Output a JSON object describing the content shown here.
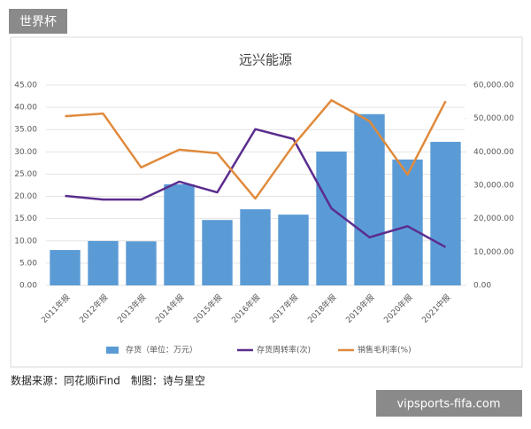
{
  "badge": "世界杯",
  "source_note": "数据来源：同花顺iFind　制图：诗与星空",
  "watermark": "vipsports-fifa.com",
  "chart_data": {
    "type": "bar-line",
    "title": "远兴能源",
    "categories": [
      "2011年报",
      "2012年报",
      "2013年报",
      "2014年报",
      "2015年报",
      "2016年报",
      "2017年报",
      "2018年报",
      "2019年报",
      "2020年报",
      "2021中报"
    ],
    "series": [
      {
        "name": "存货（单位：万元）",
        "type": "bar",
        "axis": "y2",
        "color": "#5b9bd5",
        "values": [
          10600,
          13300,
          13200,
          30300,
          19600,
          22800,
          21200,
          40100,
          51300,
          37700,
          43000
        ]
      },
      {
        "name": "存货周转率(次)",
        "type": "line",
        "color": "#5b2d8e",
        "values": [
          20.1,
          19.3,
          19.3,
          23.3,
          20.9,
          35.1,
          32.9,
          17.3,
          10.8,
          13.3,
          8.6
        ]
      },
      {
        "name": "销售毛利率(%)",
        "type": "line",
        "color": "#e08a3c",
        "values": [
          38.0,
          38.6,
          26.5,
          30.5,
          29.7,
          19.5,
          31.5,
          41.6,
          36.9,
          24.9,
          41.4
        ]
      }
    ],
    "ylim": [
      0,
      45
    ],
    "yticks": [
      {
        "value": 0,
        "label": "0.00"
      },
      {
        "value": 5,
        "label": "5.00"
      },
      {
        "value": 10,
        "label": "10.00"
      },
      {
        "value": 15,
        "label": "15.00"
      },
      {
        "value": 20,
        "label": "20.00"
      },
      {
        "value": 25,
        "label": "25.00"
      },
      {
        "value": 30,
        "label": "30.00"
      },
      {
        "value": 35,
        "label": "35.00"
      },
      {
        "value": 40,
        "label": "40.00"
      },
      {
        "value": 45,
        "label": "45.00"
      }
    ],
    "y2lim": [
      0,
      60000
    ],
    "y2ticks": [
      {
        "value": 0,
        "label": "0.00"
      },
      {
        "value": 10000,
        "label": "10,000.00"
      },
      {
        "value": 20000,
        "label": "20,000.00"
      },
      {
        "value": 30000,
        "label": "30,000.00"
      },
      {
        "value": 40000,
        "label": "40,000.00"
      },
      {
        "value": 50000,
        "label": "50,000.00"
      },
      {
        "value": 60000,
        "label": "60,000.00"
      }
    ],
    "grid": true
  }
}
